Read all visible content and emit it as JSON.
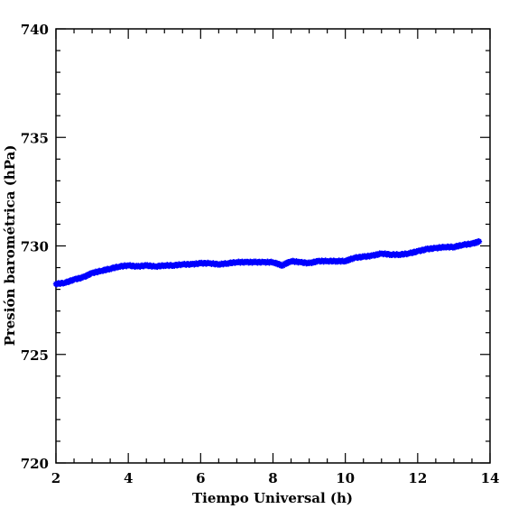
{
  "chart_data": {
    "type": "scatter",
    "xlabel": "Tiempo Universal (h)",
    "ylabel": "Presión barométrica (hPa)",
    "xlim": [
      2,
      14
    ],
    "ylim": [
      720,
      740
    ],
    "x_ticks": [
      2,
      4,
      6,
      8,
      10,
      12,
      14
    ],
    "y_ticks": [
      720,
      725,
      730,
      735,
      740
    ],
    "grid": false,
    "series": [
      {
        "color": "#0000ff",
        "marker": "asterisk",
        "x": [
          2.0,
          2.25,
          2.5,
          2.75,
          3.0,
          3.25,
          3.5,
          3.75,
          4.0,
          4.25,
          4.5,
          4.75,
          5.0,
          5.25,
          5.5,
          5.75,
          6.0,
          6.25,
          6.5,
          6.75,
          7.0,
          7.25,
          7.5,
          7.75,
          8.0,
          8.25,
          8.5,
          8.75,
          9.0,
          9.25,
          9.5,
          9.75,
          10.0,
          10.25,
          10.5,
          10.75,
          11.0,
          11.25,
          11.5,
          11.75,
          12.0,
          12.25,
          12.5,
          12.75,
          13.0,
          13.25,
          13.5,
          13.7
        ],
        "y": [
          728.25,
          728.3,
          728.45,
          728.55,
          728.75,
          728.85,
          728.95,
          729.05,
          729.1,
          729.05,
          729.1,
          729.05,
          729.1,
          729.1,
          729.15,
          729.15,
          729.2,
          729.2,
          729.15,
          729.2,
          729.25,
          729.25,
          729.25,
          729.25,
          729.25,
          729.1,
          729.3,
          729.25,
          729.2,
          729.3,
          729.3,
          729.3,
          729.3,
          729.45,
          729.5,
          729.55,
          729.65,
          729.6,
          729.6,
          729.65,
          729.75,
          729.85,
          729.9,
          729.95,
          729.95,
          730.05,
          730.1,
          730.2
        ]
      }
    ]
  }
}
